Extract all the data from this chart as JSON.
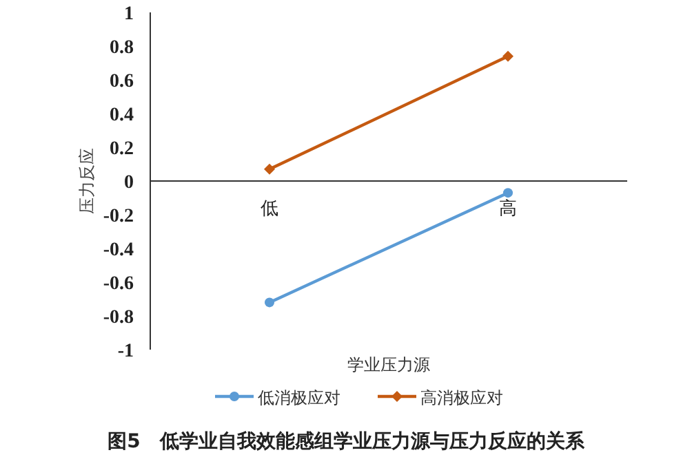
{
  "chart_data": {
    "type": "line",
    "title": "图5　低学业自我效能感组学业压力源与压力反应的关系",
    "xlabel": "学业压力源",
    "ylabel": "压力反应",
    "categories": [
      "低",
      "高"
    ],
    "series": [
      {
        "name": "低消极应对",
        "color": "#5b9bd5",
        "values": [
          -0.72,
          -0.07
        ],
        "marker": "circle"
      },
      {
        "name": "高消极应对",
        "color": "#c55a11",
        "values": [
          0.07,
          0.74
        ],
        "marker": "diamond"
      }
    ],
    "ylim": [
      -1,
      1
    ],
    "yticks": [
      -1,
      -0.8,
      -0.6,
      -0.4,
      -0.2,
      0,
      0.2,
      0.4,
      0.6,
      0.8,
      1
    ],
    "grid": false,
    "legend": "bottom"
  }
}
